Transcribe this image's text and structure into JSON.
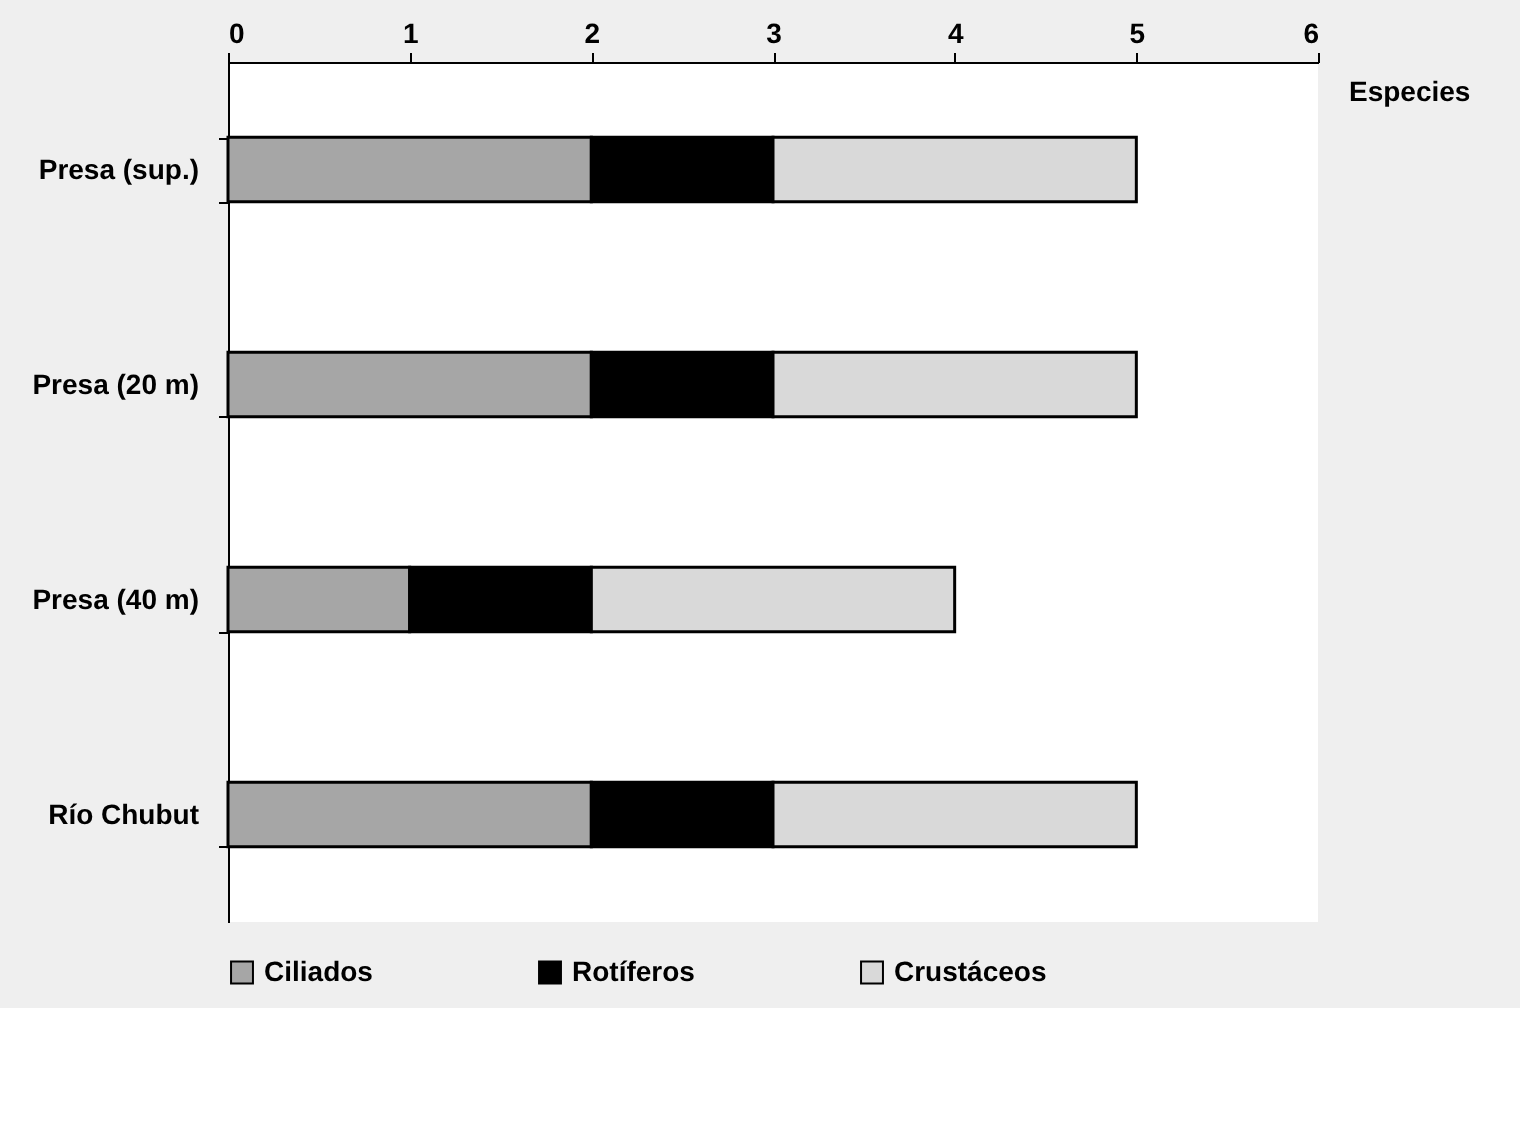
{
  "chart_data": {
    "type": "bar",
    "orientation": "horizontal",
    "stacked": true,
    "categories": [
      "Presa (sup.)",
      "Presa (20 m)",
      "Presa (40 m)",
      "Río Chubut"
    ],
    "series": [
      {
        "name": "Ciliados",
        "color": "#a6a6a6",
        "values": [
          2,
          2,
          1,
          2
        ]
      },
      {
        "name": "Rotíferos",
        "color": "#000000",
        "values": [
          1,
          1,
          1,
          1
        ]
      },
      {
        "name": "Crustáceos",
        "color": "#d9d9d9",
        "values": [
          2,
          2,
          2,
          2
        ]
      }
    ],
    "xlabel": "Especies",
    "xlim": [
      0,
      6
    ],
    "xticks": [
      0,
      1,
      2,
      3,
      4,
      5,
      6
    ],
    "grid": false,
    "legend": "bottom"
  }
}
